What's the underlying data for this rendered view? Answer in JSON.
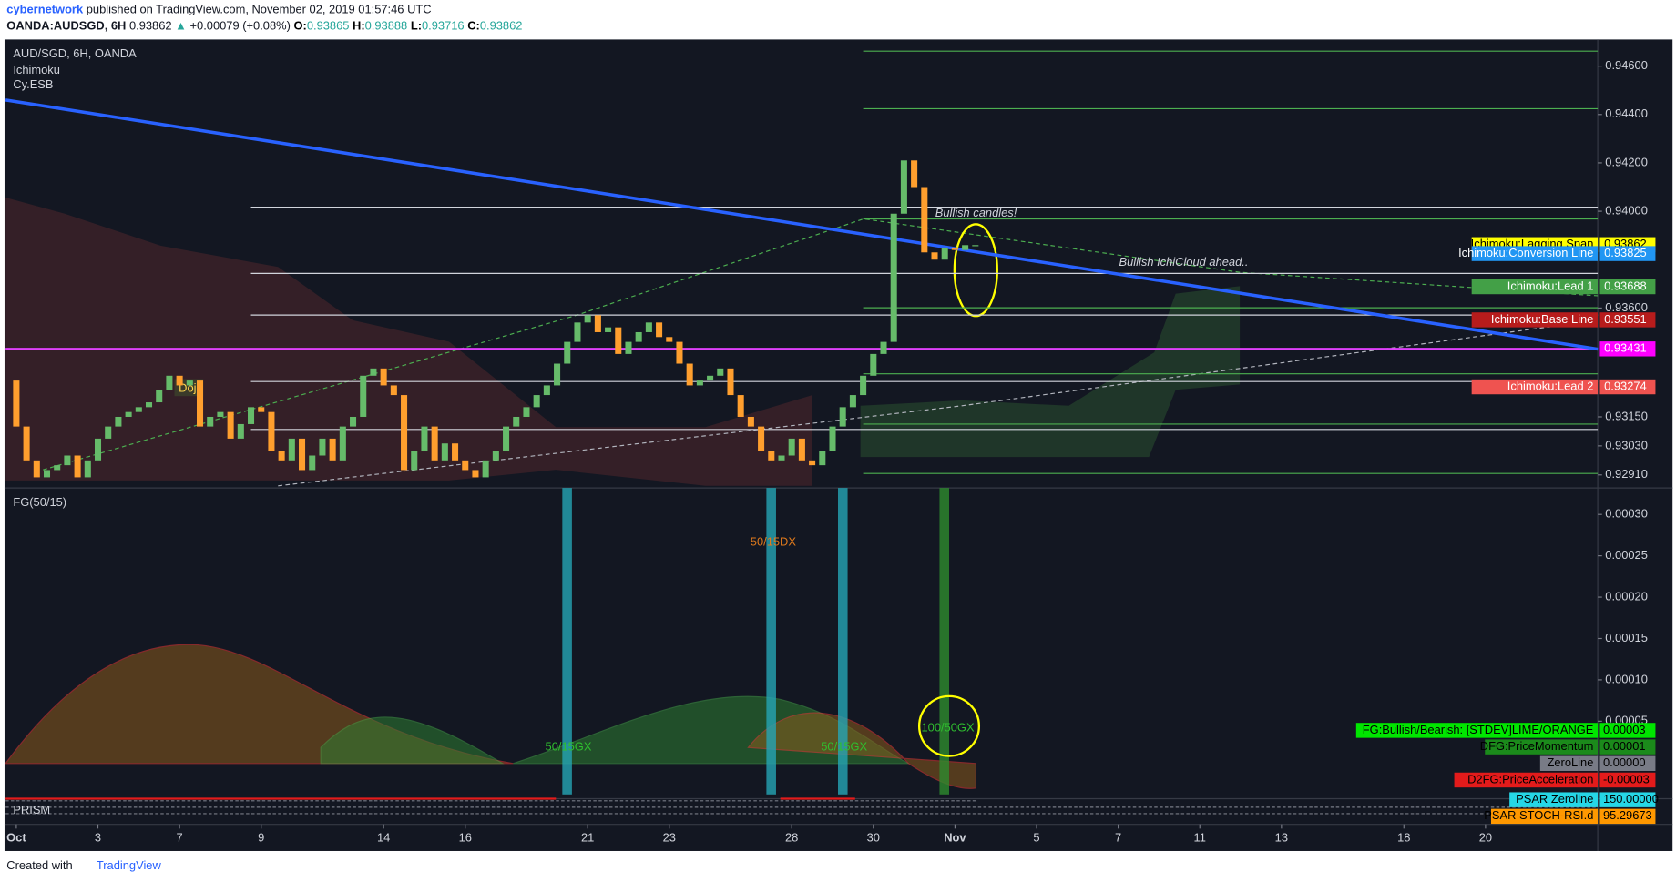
{
  "header": {
    "author": "cybernetwork",
    "published": "published on TradingView.com, November 02, 2019 01:57:46 UTC",
    "symbol": "OANDA:AUDSGD, 6H",
    "last": "0.93862",
    "arrow": "▲",
    "change": "+0.00079 (+0.08%)",
    "ohlc": [
      {
        "label": "O:",
        "value": "0.93865"
      },
      {
        "label": "H:",
        "value": "0.93888"
      },
      {
        "label": "L:",
        "value": "0.93716"
      },
      {
        "label": "C:",
        "value": "0.93862"
      }
    ]
  },
  "chart_data": [
    {
      "type": "candlestick",
      "title": "AUD/SGD, 6H, OANDA",
      "indicators": [
        "Ichimoku",
        "Cy.ESB"
      ],
      "xlim": [
        -1.05,
        155
      ],
      "xticks": [
        {
          "value": 0,
          "label": "Oct"
        },
        {
          "value": 8,
          "label": "3"
        },
        {
          "value": 16,
          "label": "7"
        },
        {
          "value": 24,
          "label": "9"
        },
        {
          "value": 36,
          "label": "14"
        },
        {
          "value": 44,
          "label": "16"
        },
        {
          "value": 56,
          "label": "21"
        },
        {
          "value": 64,
          "label": "23"
        },
        {
          "value": 76,
          "label": "28"
        },
        {
          "value": 84,
          "label": "30"
        },
        {
          "value": 92,
          "label": "Nov"
        },
        {
          "value": 100,
          "label": "5"
        },
        {
          "value": 108,
          "label": "7"
        },
        {
          "value": 116,
          "label": "11"
        },
        {
          "value": 124,
          "label": "13"
        },
        {
          "value": 136,
          "label": "18"
        },
        {
          "value": 144,
          "label": "20"
        }
      ],
      "ylim": [
        0.92856,
        0.9471
      ],
      "yticks": [
        {
          "value": 0.946,
          "label": "0.94600"
        },
        {
          "value": 0.944,
          "label": "0.94400"
        },
        {
          "value": 0.942,
          "label": "0.94200"
        },
        {
          "value": 0.94,
          "label": "0.94000"
        },
        {
          "value": 0.936,
          "label": "0.93600"
        },
        {
          "value": 0.9315,
          "label": "0.93150"
        },
        {
          "value": 0.9303,
          "label": "0.93030"
        },
        {
          "value": 0.9291,
          "label": "0.92910"
        }
      ],
      "up_color": "#66bb6a",
      "down_color": "#ff9f2e",
      "open": [
        0.933,
        0.9311,
        0.9297,
        0.929,
        0.9293,
        0.9295,
        0.9299,
        0.929,
        0.9297,
        0.9306,
        0.9311,
        0.9315,
        0.9317,
        0.9319,
        0.9321,
        0.9326,
        0.9332,
        0.9328,
        0.933,
        0.9311,
        0.9315,
        0.9317,
        0.9306,
        0.9312,
        0.9319,
        0.9317,
        0.9301,
        0.9297,
        0.9306,
        0.9293,
        0.9299,
        0.9306,
        0.9297,
        0.9311,
        0.9315,
        0.9332,
        0.9335,
        0.9328,
        0.9324,
        0.9293,
        0.9301,
        0.9311,
        0.9297,
        0.9304,
        0.9297,
        0.9293,
        0.929,
        0.9297,
        0.9301,
        0.9311,
        0.9315,
        0.9319,
        0.9324,
        0.9328,
        0.9337,
        0.9346,
        0.9354,
        0.9357,
        0.935,
        0.9352,
        0.9341,
        0.9346,
        0.935,
        0.9354,
        0.9348,
        0.9346,
        0.9337,
        0.9328,
        0.933,
        0.9332,
        0.9335,
        0.9324,
        0.9315,
        0.9311,
        0.9301,
        0.9297,
        0.9299,
        0.9306,
        0.9297,
        0.9295,
        0.9301,
        0.9311,
        0.9319,
        0.9324,
        0.9332,
        0.9341,
        0.9346,
        0.9399,
        0.9421,
        0.941,
        0.9383,
        0.938,
        0.9385,
        0.9384,
        0.9386
      ],
      "close": [
        0.9311,
        0.9297,
        0.929,
        0.9293,
        0.9295,
        0.9299,
        0.929,
        0.9297,
        0.9306,
        0.9311,
        0.9315,
        0.9317,
        0.9319,
        0.9321,
        0.9326,
        0.9332,
        0.9328,
        0.933,
        0.9311,
        0.9315,
        0.9317,
        0.9306,
        0.9312,
        0.9319,
        0.9317,
        0.9301,
        0.9297,
        0.9306,
        0.9293,
        0.9299,
        0.9306,
        0.9297,
        0.9311,
        0.9315,
        0.9332,
        0.9335,
        0.9328,
        0.9324,
        0.9293,
        0.9301,
        0.9311,
        0.9297,
        0.9304,
        0.9297,
        0.9293,
        0.929,
        0.9297,
        0.9301,
        0.9311,
        0.9315,
        0.9319,
        0.9324,
        0.9328,
        0.9337,
        0.9346,
        0.9354,
        0.9357,
        0.935,
        0.9352,
        0.9341,
        0.9346,
        0.935,
        0.9354,
        0.9348,
        0.9346,
        0.9337,
        0.9328,
        0.933,
        0.9332,
        0.9335,
        0.9324,
        0.9315,
        0.9311,
        0.9301,
        0.9297,
        0.9299,
        0.9306,
        0.9297,
        0.9295,
        0.9301,
        0.9311,
        0.9319,
        0.9324,
        0.9332,
        0.9341,
        0.9346,
        0.9399,
        0.9421,
        0.941,
        0.9383,
        0.938,
        0.9385,
        0.9384,
        0.9386,
        0.9386
      ],
      "trendline": {
        "color": "#2962ff",
        "values": [
          0.9446,
          0.9343
        ]
      },
      "levels": [
        {
          "value": 0.94662,
          "from": 83,
          "color": "#4caf50"
        },
        {
          "value": 0.94424,
          "from": 83,
          "color": "#4caf50"
        },
        {
          "value": 0.93968,
          "from": 83,
          "color": "#4caf50"
        },
        {
          "value": 0.93601,
          "from": 83,
          "color": "#4caf50"
        },
        {
          "value": 0.93328,
          "from": 83,
          "color": "#4caf50"
        },
        {
          "value": 0.9312,
          "from": 83,
          "color": "#4caf50"
        },
        {
          "value": 0.92916,
          "from": 83,
          "color": "#4caf50"
        },
        {
          "value": 0.94017,
          "from": 23,
          "color": "#d1d4dc"
        },
        {
          "value": 0.93743,
          "from": 23,
          "color": "#d1d4dc"
        },
        {
          "value": 0.93571,
          "from": 23,
          "color": "#d1d4dc"
        },
        {
          "value": 0.93296,
          "from": 23,
          "color": "#d1d4dc"
        },
        {
          "value": 0.93098,
          "from": 23,
          "color": "#d1d4dc"
        },
        {
          "value": 0.93431,
          "from": -1.05,
          "color": "#e040fb"
        }
      ],
      "price_labels": [
        {
          "name": "Ichimoku:Lagging Span",
          "value": 0.93862,
          "color": "#ffff00"
        },
        {
          "name": "Ichimoku:Conversion Line",
          "value": 0.93825,
          "color": "#2196f3"
        },
        {
          "name": "Ichimoku:Lead 1",
          "value": 0.93688,
          "color": "#43a047"
        },
        {
          "name": "Ichimoku:Base Line",
          "value": 0.93551,
          "color": "#b71c1c"
        },
        {
          "value": 0.93431,
          "color": "#ff00ff"
        },
        {
          "name": "Ichimoku:Lead 2",
          "value": 0.93274,
          "color": "#ef5350"
        }
      ],
      "annotations": [
        "Bullish candles!",
        "Bullish IchiCloud ahead..",
        "Doji"
      ]
    },
    {
      "type": "oscillator",
      "title": "FG(50/15)",
      "ylim": [
        -4.37e-05,
        0.000332
      ],
      "yticks": [
        {
          "value": 0.0003,
          "label": "0.00030"
        },
        {
          "value": 0.00025,
          "label": "0.00025"
        },
        {
          "value": 0.0002,
          "label": "0.00020"
        },
        {
          "value": 0.00015,
          "label": "0.00015"
        },
        {
          "value": 0.0001,
          "label": "0.00010"
        },
        {
          "value": 5e-05,
          "label": "0.00005"
        }
      ],
      "value_labels": [
        {
          "name": "FG:Bullish/Bearish: [STDEV]LIME/ORANGE",
          "value": 3e-05,
          "color": "#00e600"
        },
        {
          "name": "DFG:PriceMomentum",
          "value": 1e-05,
          "color": "#1b8a1b"
        },
        {
          "name": "ZeroLine",
          "value": 0,
          "label": "0.00000",
          "color": "#787b86"
        },
        {
          "name": "D2FG:PriceAcceleration",
          "value": -3e-05,
          "color": "#e31b1b"
        }
      ],
      "annotations": [
        "50/15GX",
        "50/15DX",
        "50/15GX",
        "100/50GX"
      ]
    },
    {
      "type": "oscillator",
      "title": "PRISM",
      "value_labels": [
        {
          "name": "PSAR Zeroline",
          "value": 150,
          "label": "150.00000",
          "color": "#26d7e6"
        },
        {
          "name": "PSAR STOCH-RSI.d",
          "value": 95.29673,
          "color": "#ff9800"
        }
      ]
    }
  ],
  "footer": {
    "created": "Created with",
    "brand": "TradingView"
  }
}
